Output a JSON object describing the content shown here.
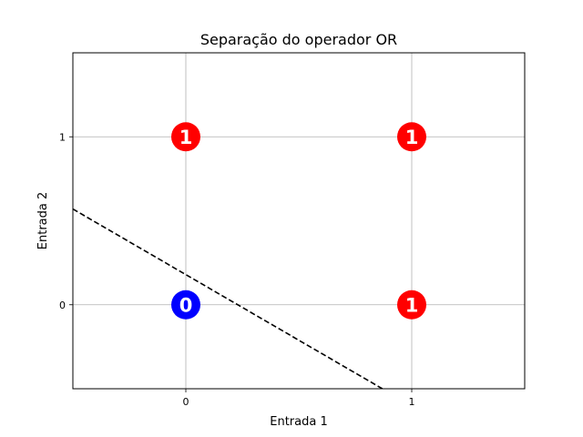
{
  "chart_data": {
    "type": "scatter",
    "title": "Separação do operador OR",
    "xlabel": "Entrada 1",
    "ylabel": "Entrada 2",
    "xlim": [
      -0.5,
      1.5
    ],
    "ylim": [
      -0.5,
      1.5
    ],
    "xticks": [
      0,
      1
    ],
    "yticks": [
      0,
      1
    ],
    "grid": true,
    "points": [
      {
        "x": 0,
        "y": 0,
        "label": "0",
        "color": "#0000ff"
      },
      {
        "x": 0,
        "y": 1,
        "label": "1",
        "color": "#ff0000"
      },
      {
        "x": 1,
        "y": 0,
        "label": "1",
        "color": "#ff0000"
      },
      {
        "x": 1,
        "y": 1,
        "label": "1",
        "color": "#ff0000"
      }
    ],
    "decision_line": {
      "x": [
        -0.5,
        0.87
      ],
      "y": [
        0.57,
        -0.5
      ],
      "style": "dashed",
      "color": "#000000"
    }
  }
}
